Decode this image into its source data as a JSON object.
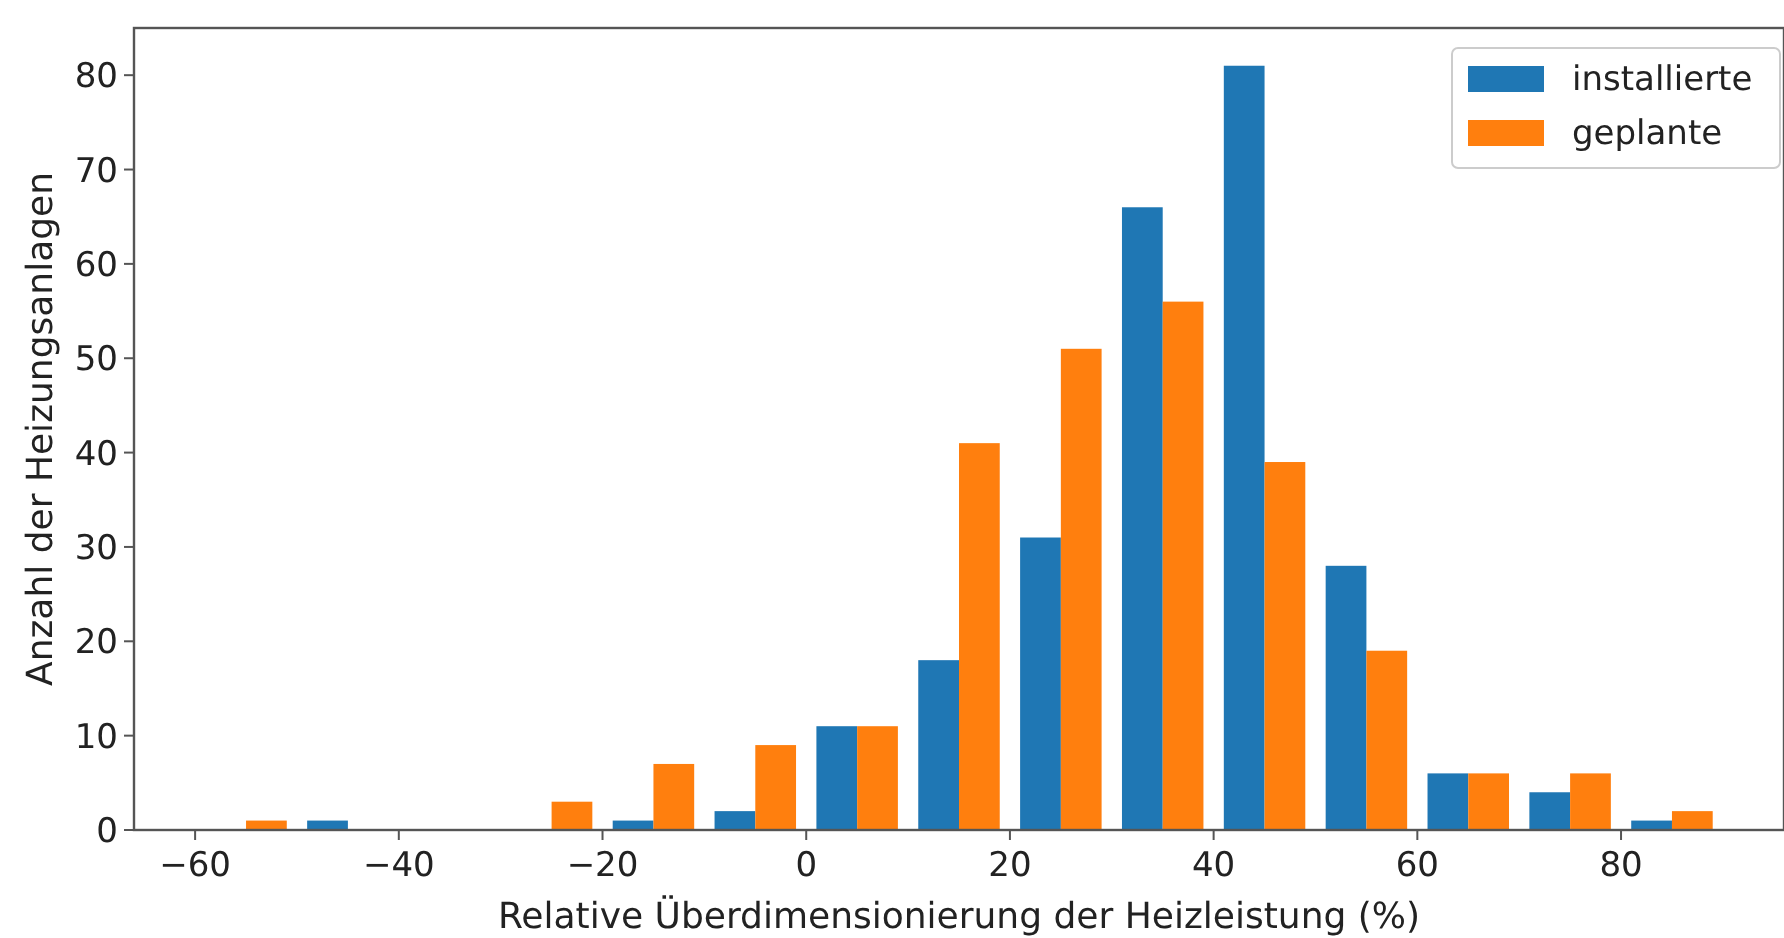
{
  "chart_data": {
    "type": "histogram",
    "xlabel": "Relative Überdimensionierung der Heizleistung (%)",
    "ylabel": "Anzahl der Heizungsanlagen",
    "bins": [
      -60,
      -50,
      -40,
      -30,
      -20,
      -10,
      0,
      10,
      20,
      30,
      40,
      50,
      60,
      70,
      80,
      90
    ],
    "series": [
      {
        "name": "installierte",
        "color": "#1f77b4",
        "values": [
          0,
          1,
          0,
          0,
          1,
          2,
          11,
          18,
          31,
          66,
          81,
          28,
          6,
          4,
          1
        ]
      },
      {
        "name": "geplante",
        "color": "#ff7f0e",
        "values": [
          1,
          0,
          0,
          3,
          7,
          9,
          11,
          41,
          51,
          56,
          39,
          19,
          6,
          6,
          2
        ]
      }
    ],
    "xlim": [
      -66,
      96
    ],
    "xticks": [
      {
        "value": -60,
        "label": "−60"
      },
      {
        "value": -40,
        "label": "−40"
      },
      {
        "value": -20,
        "label": "−20"
      },
      0,
      20,
      40,
      60,
      80
    ],
    "ylim": [
      0,
      85
    ],
    "yticks": [
      0,
      10,
      20,
      30,
      40,
      50,
      60,
      70,
      80
    ],
    "legend": "top right"
  }
}
